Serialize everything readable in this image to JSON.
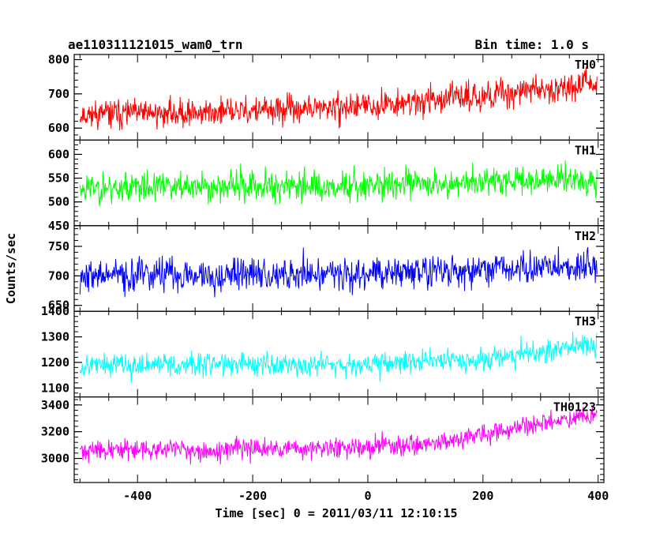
{
  "header": {
    "obs_id": "ae110311121015_wam0_trn",
    "bin_time": "Bin time: 1.0 s"
  },
  "chart_data": {
    "type": "line",
    "xlabel": "Time [sec] 0 = 2011/03/11 12:10:15",
    "ylabel": "Counts/sec",
    "xlim": [
      -510,
      410
    ],
    "xticks": [
      -400,
      -200,
      0,
      200,
      400
    ],
    "x_range": [
      -500,
      398
    ],
    "bin_time_s": 1.0,
    "panels": [
      {
        "name": "TH0",
        "color": "#ff0000",
        "ylim": [
          565,
          815
        ],
        "yticks": [
          600,
          700,
          800
        ],
        "trend": {
          "x": [
            -500,
            -300,
            -100,
            0,
            100,
            200,
            300,
            400
          ],
          "y": [
            640,
            645,
            655,
            665,
            680,
            695,
            715,
            730
          ]
        },
        "spread": 40,
        "seed": 11
      },
      {
        "name": "TH1",
        "color": "#00ff00",
        "ylim": [
          450,
          630
        ],
        "yticks": [
          450,
          500,
          550,
          600
        ],
        "trend": {
          "x": [
            -500,
            0,
            400
          ],
          "y": [
            530,
            535,
            550
          ]
        },
        "spread": 32,
        "seed": 23
      },
      {
        "name": "TH2",
        "color": "#0000ff",
        "ylim": [
          640,
          785
        ],
        "yticks": [
          650,
          700,
          750
        ],
        "trend": {
          "x": [
            -500,
            0,
            400
          ],
          "y": [
            700,
            705,
            715
          ]
        },
        "spread": 28,
        "seed": 37
      },
      {
        "name": "TH3",
        "color": "#00ffff",
        "ylim": [
          1065,
          1400
        ],
        "yticks": [
          1100,
          1200,
          1300,
          1400
        ],
        "trend": {
          "x": [
            -500,
            0,
            200,
            400
          ],
          "y": [
            1190,
            1195,
            1215,
            1270
          ]
        },
        "spread": 45,
        "seed": 53
      },
      {
        "name": "TH0123",
        "color": "#ff00ff",
        "ylim": [
          2820,
          3460
        ],
        "yticks": [
          3000,
          3200,
          3400
        ],
        "trend": {
          "x": [
            -500,
            -100,
            100,
            300,
            400
          ],
          "y": [
            3060,
            3070,
            3110,
            3250,
            3340
          ]
        },
        "spread": 75,
        "seed": 71
      }
    ]
  }
}
